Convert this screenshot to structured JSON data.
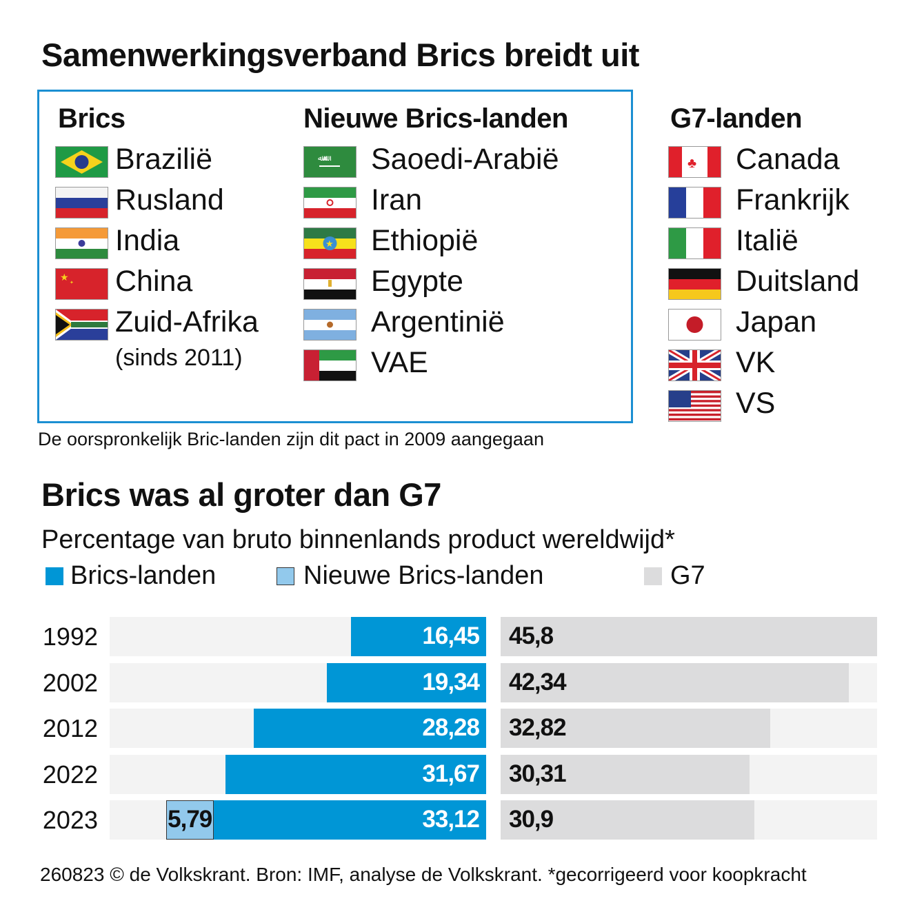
{
  "title": "Samenwerkingsverband Brics breidt uit",
  "groups": {
    "brics": {
      "heading": "Brics",
      "items": [
        {
          "name": "Brazilië",
          "icon": "flag-brazil"
        },
        {
          "name": "Rusland",
          "icon": "flag-russia"
        },
        {
          "name": "India",
          "icon": "flag-india"
        },
        {
          "name": "China",
          "icon": "flag-china"
        },
        {
          "name": "Zuid-Afrika",
          "icon": "flag-south-africa"
        }
      ],
      "footnote": "(sinds 2011)"
    },
    "new_brics": {
      "heading": "Nieuwe Brics-landen",
      "items": [
        {
          "name": "Saoedi-Arabië",
          "icon": "flag-saudi-arabia"
        },
        {
          "name": "Iran",
          "icon": "flag-iran"
        },
        {
          "name": "Ethiopië",
          "icon": "flag-ethiopia"
        },
        {
          "name": "Egypte",
          "icon": "flag-egypt"
        },
        {
          "name": "Argentinië",
          "icon": "flag-argentina"
        },
        {
          "name": "VAE",
          "icon": "flag-uae"
        }
      ]
    },
    "g7": {
      "heading": "G7-landen",
      "items": [
        {
          "name": "Canada",
          "icon": "flag-canada"
        },
        {
          "name": "Frankrijk",
          "icon": "flag-france"
        },
        {
          "name": "Italië",
          "icon": "flag-italy"
        },
        {
          "name": "Duitsland",
          "icon": "flag-germany"
        },
        {
          "name": "Japan",
          "icon": "flag-japan"
        },
        {
          "name": "VK",
          "icon": "flag-uk"
        },
        {
          "name": "VS",
          "icon": "flag-usa"
        }
      ]
    }
  },
  "box_note": "De oorspronkelijk Bric-landen zijn dit pact in 2009 aangegaan",
  "chart_data": {
    "type": "bar",
    "orientation": "horizontal",
    "title": "Brics was al groter dan G7",
    "subtitle": "Percentage van bruto binnenlands product wereldwijd*",
    "categories": [
      "1992",
      "2002",
      "2012",
      "2022",
      "2023"
    ],
    "series": [
      {
        "name": "Brics-landen",
        "color": "#0096d6",
        "values": [
          16.45,
          19.34,
          28.28,
          31.67,
          33.12
        ],
        "labels": [
          "16,45",
          "19,34",
          "28,28",
          "31,67",
          "33,12"
        ]
      },
      {
        "name": "Nieuwe Brics-landen",
        "color": "#92c9ec",
        "values": [
          null,
          null,
          null,
          null,
          5.79
        ],
        "labels": [
          "",
          "",
          "",
          "",
          "5,79"
        ]
      },
      {
        "name": "G7",
        "color": "#dcdcdd",
        "values": [
          45.8,
          42.34,
          32.82,
          30.31,
          30.9
        ],
        "labels": [
          "45,8",
          "42,34",
          "32,82",
          "30,31",
          "30,9"
        ]
      }
    ],
    "xlim": [
      0,
      45.8
    ],
    "grid": false,
    "legend": "top-left"
  },
  "footer": "260823 © de Volkskrant. Bron: IMF, analyse de Volkskrant.  *gecorrigeerd voor koopkracht"
}
